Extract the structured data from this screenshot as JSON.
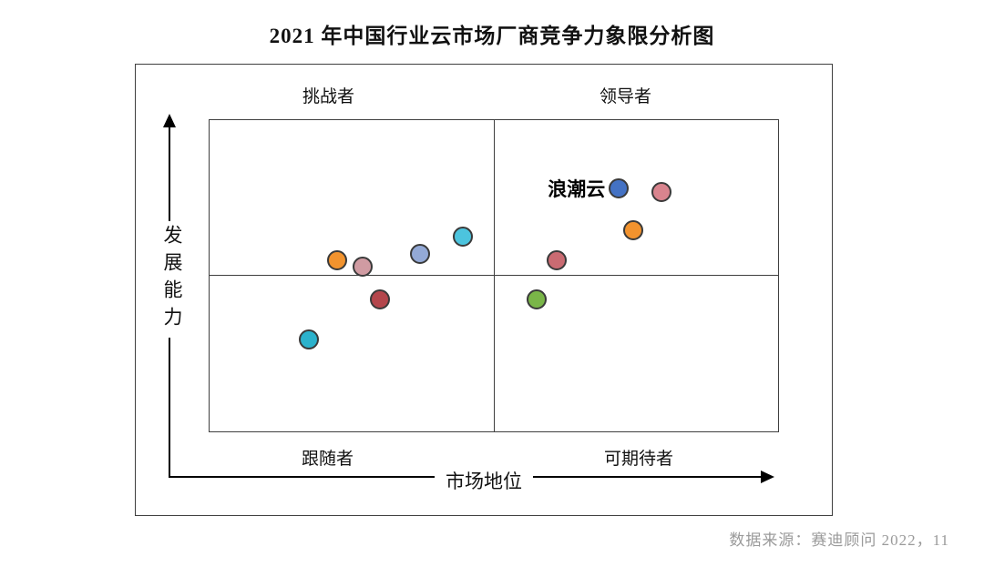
{
  "title": "2021 年中国行业云市场厂商竞争力象限分析图",
  "quadrants": {
    "top_left": "挑战者",
    "top_right": "领导者",
    "bottom_left": "跟随者",
    "bottom_right": "可期待者"
  },
  "axes": {
    "y_label": "发展能力",
    "x_label": "市场地位"
  },
  "source": "数据来源：赛迪顾问  2022，11",
  "chart_data": {
    "type": "scatter",
    "title": "2021 年中国行业云市场厂商竞争力象限分析图",
    "xlabel": "市场地位",
    "ylabel": "发展能力",
    "x_range": [
      0,
      100
    ],
    "y_range": [
      0,
      100
    ],
    "grid": false,
    "quadrant_divider": {
      "x": 50,
      "y": 50
    },
    "quadrant_labels": {
      "top_left": "挑战者",
      "top_right": "领导者",
      "bottom_left": "跟随者",
      "bottom_right": "可期待者"
    },
    "points": [
      {
        "label": "浪潮云",
        "x": 72,
        "y": 78,
        "color": "#4472c4"
      },
      {
        "label": "",
        "x": 79.5,
        "y": 77,
        "color": "#d9848e"
      },
      {
        "label": "",
        "x": 74.5,
        "y": 64.5,
        "color": "#f2932e"
      },
      {
        "label": "",
        "x": 61,
        "y": 55,
        "color": "#ca6b72"
      },
      {
        "label": "",
        "x": 57.5,
        "y": 42.5,
        "color": "#7ab648"
      },
      {
        "label": "",
        "x": 44.5,
        "y": 62.5,
        "color": "#4cc4de"
      },
      {
        "label": "",
        "x": 37,
        "y": 57,
        "color": "#93a9d6"
      },
      {
        "label": "",
        "x": 22.5,
        "y": 55,
        "color": "#f2932e"
      },
      {
        "label": "",
        "x": 27,
        "y": 53,
        "color": "#d09ba2"
      },
      {
        "label": "",
        "x": 30,
        "y": 42.5,
        "color": "#b4464c"
      },
      {
        "label": "",
        "x": 17.5,
        "y": 29.5,
        "color": "#2bb2cc"
      }
    ]
  }
}
